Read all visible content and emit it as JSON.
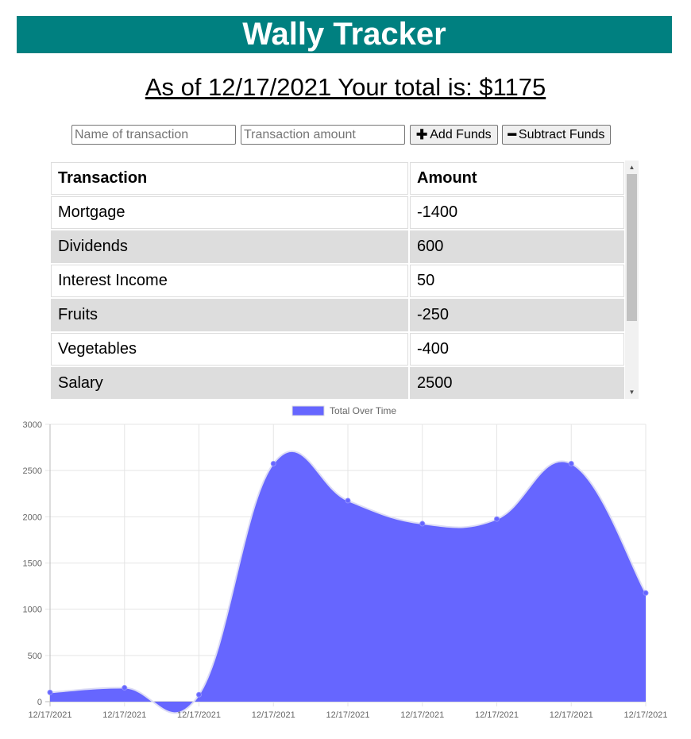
{
  "app": {
    "title": "Wally Tracker"
  },
  "summary": {
    "total_text": "As of 12/17/2021 Your total is: $1175"
  },
  "form": {
    "name_placeholder": "Name of transaction",
    "amount_placeholder": "Transaction amount",
    "add_label": "Add Funds",
    "subtract_label": "Subtract Funds"
  },
  "table": {
    "headers": [
      "Transaction",
      "Amount"
    ],
    "rows": [
      {
        "name": "Mortgage",
        "amount": "-1400"
      },
      {
        "name": "Dividends",
        "amount": "600"
      },
      {
        "name": "Interest Income",
        "amount": "50"
      },
      {
        "name": "Fruits",
        "amount": "-250"
      },
      {
        "name": "Vegetables",
        "amount": "-400"
      },
      {
        "name": "Salary",
        "amount": "2500"
      }
    ]
  },
  "colors": {
    "header_bg": "#008080",
    "area_fill": "#6666ff",
    "row_shade": "#dddddd"
  },
  "chart_data": {
    "type": "area",
    "title": "",
    "legend": {
      "label": "Total Over Time",
      "placement": "top-center"
    },
    "x": [
      "12/17/2021",
      "12/17/2021",
      "12/17/2021",
      "12/17/2021",
      "12/17/2021",
      "12/17/2021",
      "12/17/2021",
      "12/17/2021",
      "12/17/2021"
    ],
    "series": [
      {
        "name": "Total Over Time",
        "values": [
          100,
          150,
          75,
          2575,
          2175,
          1925,
          1975,
          2575,
          1175
        ]
      }
    ],
    "ylim": [
      0,
      3000
    ],
    "yticks": [
      0,
      500,
      1000,
      1500,
      2000,
      2500,
      3000
    ],
    "grid": true,
    "smooth": true
  }
}
